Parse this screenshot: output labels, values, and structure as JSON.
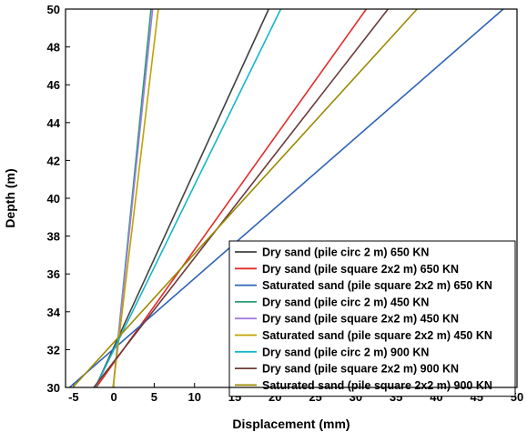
{
  "chart_data": {
    "type": "line",
    "title": "",
    "xlabel": "Displacement (mm)",
    "ylabel": "Depth (m)",
    "xlim": [
      -6,
      50
    ],
    "ylim": [
      30,
      50
    ],
    "xticks": [
      -5,
      0,
      5,
      10,
      15,
      20,
      25,
      30,
      35,
      40,
      45,
      50
    ],
    "yticks": [
      30,
      32,
      34,
      36,
      38,
      40,
      42,
      44,
      46,
      48,
      50
    ],
    "grid": false,
    "legend_position": "bottom-right",
    "series": [
      {
        "name": "Dry sand (pile circ 2 m) 650 KN",
        "color": "#404040",
        "x": [
          -2.3,
          19.2
        ],
        "y": [
          30,
          50
        ]
      },
      {
        "name": "Dry sand (pile square 2x2 m) 650 KN",
        "color": "#e32b2b",
        "x": [
          -2.2,
          31.3
        ],
        "y": [
          30,
          50
        ]
      },
      {
        "name": "Saturated sand (pile square 2x2 m) 650 KN",
        "color": "#2e63b8",
        "x": [
          -5.5,
          48.3
        ],
        "y": [
          30,
          50
        ]
      },
      {
        "name": "Dry sand (pile circ 2 m) 450 KN",
        "color": "#2a9c72",
        "x": [
          -0.1,
          4.6
        ],
        "y": [
          30,
          50
        ]
      },
      {
        "name": "Dry sand (pile square 2x2 m) 450 KN",
        "color": "#a27be0",
        "x": [
          -0.1,
          4.8
        ],
        "y": [
          30,
          50
        ]
      },
      {
        "name": "Saturated sand (pile square 2x2 m) 450 KN",
        "color": "#bfa300",
        "x": [
          -0.1,
          5.5
        ],
        "y": [
          30,
          50
        ]
      },
      {
        "name": "Dry sand (pile circ 2 m) 900 KN",
        "color": "#14b7c6",
        "x": [
          -2.3,
          20.7
        ],
        "y": [
          30,
          50
        ]
      },
      {
        "name": "Dry sand (pile square 2x2 m) 900 KN",
        "color": "#6b3a3a",
        "x": [
          -2.5,
          34.0
        ],
        "y": [
          30,
          50
        ]
      },
      {
        "name": "Saturated sand (pile square 2x2 m) 900 KN",
        "color": "#9a8a00",
        "x": [
          -5.1,
          37.6
        ],
        "y": [
          30,
          50
        ]
      }
    ]
  }
}
